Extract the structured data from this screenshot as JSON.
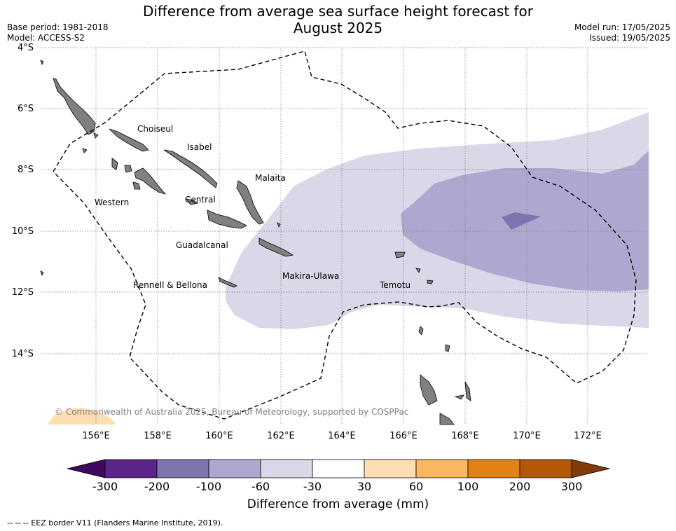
{
  "header": {
    "title_line1": "Difference from average sea surface height forecast for",
    "title_line2": "August 2025",
    "base_period": "Base period: 1981-2018",
    "model": "Model: ACCESS-S2",
    "model_run": "Model run: 17/05/2025",
    "issued": "Issued: 19/05/2025"
  },
  "map": {
    "lat_ticks": [
      "4°S",
      "6°S",
      "8°S",
      "10°S",
      "12°S",
      "14°S"
    ],
    "lon_ticks": [
      "156°E",
      "158°E",
      "160°E",
      "162°E",
      "164°E",
      "166°E",
      "168°E",
      "170°E",
      "172°E"
    ],
    "provinces": [
      "Choiseul",
      "Isabel",
      "Malaita",
      "Western",
      "Central",
      "Guadalcanal",
      "Makira-Ulawa",
      "Rennell & Bellona",
      "Temotu"
    ],
    "copyright": "© Commonwealth of Australia 2025, Bureau of Meteorology, supported by COSPPac",
    "colors": {
      "land": "#808080",
      "anomaly_-60_-30": "#d8d8e8",
      "anomaly_-100_-60": "#aea8d0",
      "anomaly_-200_-100": "#8074b0",
      "anomaly_30_60": "#fddeb2"
    }
  },
  "colorbar": {
    "title": "Difference from average (mm)",
    "ticks": [
      "-300",
      "-200",
      "-100",
      "-60",
      "-30",
      "30",
      "60",
      "100",
      "200",
      "300"
    ],
    "colors": [
      "#3f0a5e",
      "#5b2489",
      "#8074b0",
      "#aea8d0",
      "#d8d8e8",
      "#ffffff",
      "#fddeb2",
      "#fbb660",
      "#e08214",
      "#b35806",
      "#7f3b08"
    ]
  },
  "footnote": "--  --  -- EEZ border V11 (Flanders Marine Institute, 2019)."
}
